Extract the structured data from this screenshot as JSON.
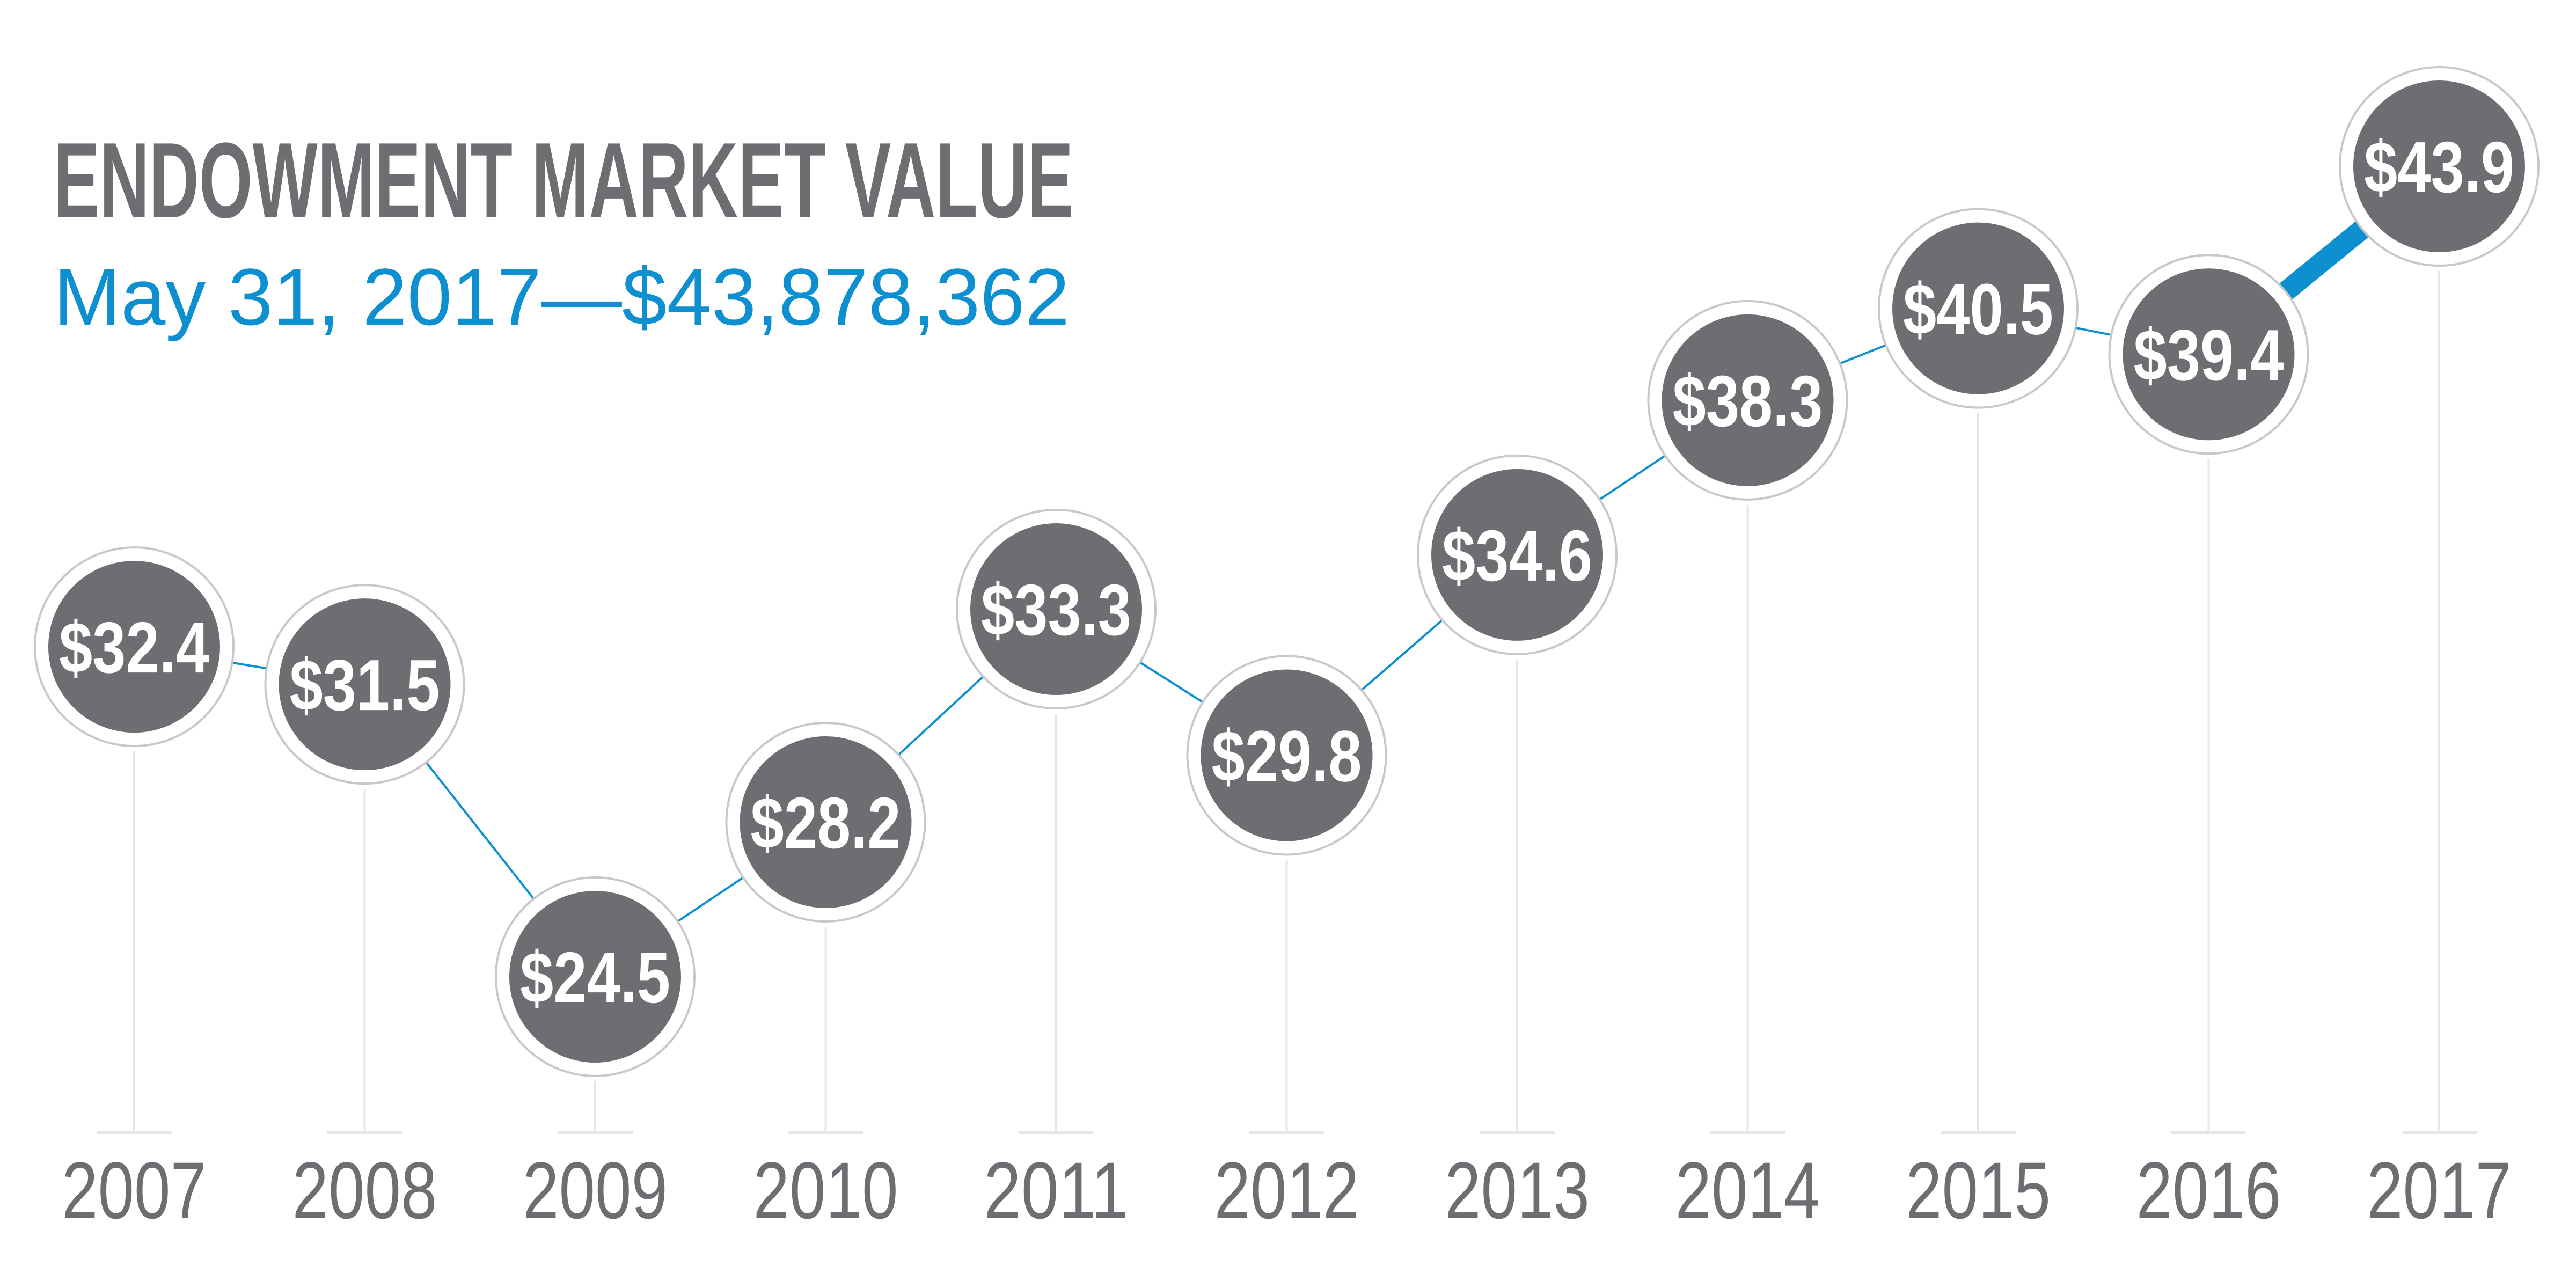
{
  "chart_data": {
    "type": "line",
    "title": "ENDOWMENT MARKET VALUE",
    "subtitle": "May 31, 2017—$43,878,362",
    "categories": [
      "2007",
      "2008",
      "2009",
      "2010",
      "2011",
      "2012",
      "2013",
      "2014",
      "2015",
      "2016",
      "2017"
    ],
    "values": [
      32.4,
      31.5,
      24.5,
      28.2,
      33.3,
      29.8,
      34.6,
      38.3,
      40.5,
      39.4,
      43.9
    ],
    "data_labels": [
      "$32.4",
      "$31.5",
      "$24.5",
      "$28.2",
      "$33.3",
      "$29.8",
      "$34.6",
      "$38.3",
      "$40.5",
      "$39.4",
      "$43.9"
    ],
    "ylim": [
      22,
      46
    ],
    "grid": false,
    "legend": "none"
  },
  "colors": {
    "title": "#6d6e71",
    "subtitle": "#0e8fd0",
    "bubble": "#6d6e71",
    "bubble_ring": "#c8c8c8",
    "connector": "#0e8fd0",
    "highlight_connector": "#0e8fd0",
    "stem": "#e6e6e6",
    "year_text": "#6d6e71",
    "label_text": "#ffffff"
  }
}
